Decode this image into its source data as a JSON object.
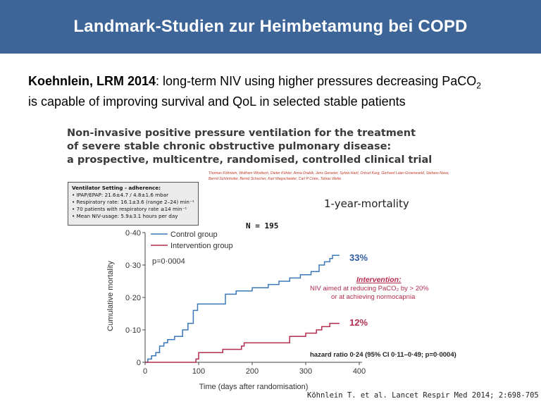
{
  "header": {
    "title": "Landmark-Studien zur Heimbetamung bei COPD"
  },
  "subtitle": {
    "study": "Koehnlein, LRM 2014",
    "text_part1": ": long-term NIV using higher pressures decreasing PaCO",
    "subscript": "2",
    "text_part2": "is capable of improving survival and QoL in selected stable patients"
  },
  "paper": {
    "title_lines": [
      "Non-invasive positive pressure ventilation for the treatment",
      "of severe stable chronic obstructive pulmonary disease:",
      "a prospective, multicentre, randomised, controlled clinical trial"
    ],
    "authors_line1": "Thomas Köhnlein, Wolfram Windisch, Dieter Köhler, Anna Drabik, Jens Geiseler, Sylvia Hartl, Ortrud Karg, Gerhard Laier-Groeneveld, Stefano Nava,",
    "authors_line2": "Bernd Schönhofer, Bernd Schucher, Karl Wegscheider, Carl P Criée, Tobias Welte"
  },
  "ventilator_box": {
    "title": "Ventilator Setting - adherence:",
    "items": [
      "• IPAP/EPAP: 21.6±4.7 / 4.8±1.6 mbar",
      "• Respiratory rate: 16.1±3.6 (range 2–24) min⁻¹",
      "• 70 patients with respiratory rate ≥14 min⁻¹",
      "• Mean NIV-usage: 5.9±3.1 hours per day"
    ]
  },
  "mortality_title": "1-year-mortality",
  "n_label": "N = 195",
  "citation": "Köhnlein T. et al. Lancet Respir Med 2014; 2:698-705",
  "colors": {
    "header_bg": "#3d6598",
    "control": "#3b78b8",
    "intervention": "#b32d4f",
    "pct_control": "#2e5aa0"
  },
  "chart_data": {
    "type": "line",
    "xlabel": "Time (days after randomisation)",
    "ylabel": "Cumulative mortality",
    "xlim": [
      0,
      400
    ],
    "ylim": [
      0,
      0.4
    ],
    "x_ticks": [
      "0",
      "100",
      "200",
      "300",
      "400"
    ],
    "y_ticks": [
      "0",
      "0·10",
      "0·20",
      "0·30",
      "0·40"
    ],
    "legend_position": "top-left",
    "p_value": "p=0·0004",
    "hazard_ratio": "hazard ratio 0·24 (95% CI 0·11–0·49; p=0·0004)",
    "intervention_annotation": {
      "title": "Intervention:",
      "line1": "NIV aimed at reducing PaCO₂ by > 20%",
      "line2": "or at achieving normocapnia"
    },
    "series": [
      {
        "name": "Control group",
        "end_label": "33%",
        "points": [
          [
            0,
            0
          ],
          [
            5,
            0.01
          ],
          [
            12,
            0.02
          ],
          [
            20,
            0.03
          ],
          [
            27,
            0.05
          ],
          [
            35,
            0.06
          ],
          [
            42,
            0.07
          ],
          [
            55,
            0.08
          ],
          [
            70,
            0.1
          ],
          [
            80,
            0.12
          ],
          [
            90,
            0.16
          ],
          [
            98,
            0.18
          ],
          [
            130,
            0.18
          ],
          [
            150,
            0.21
          ],
          [
            170,
            0.22
          ],
          [
            200,
            0.23
          ],
          [
            230,
            0.24
          ],
          [
            250,
            0.25
          ],
          [
            270,
            0.26
          ],
          [
            290,
            0.27
          ],
          [
            310,
            0.28
          ],
          [
            325,
            0.3
          ],
          [
            335,
            0.31
          ],
          [
            345,
            0.32
          ],
          [
            350,
            0.33
          ],
          [
            363,
            0.33
          ]
        ]
      },
      {
        "name": "Intervention group",
        "end_label": "12%",
        "points": [
          [
            0,
            0
          ],
          [
            90,
            0
          ],
          [
            95,
            0.01
          ],
          [
            100,
            0.03
          ],
          [
            140,
            0.03
          ],
          [
            145,
            0.04
          ],
          [
            180,
            0.05
          ],
          [
            185,
            0.06
          ],
          [
            260,
            0.06
          ],
          [
            270,
            0.08
          ],
          [
            300,
            0.09
          ],
          [
            320,
            0.1
          ],
          [
            330,
            0.11
          ],
          [
            345,
            0.12
          ],
          [
            363,
            0.12
          ]
        ]
      }
    ]
  }
}
